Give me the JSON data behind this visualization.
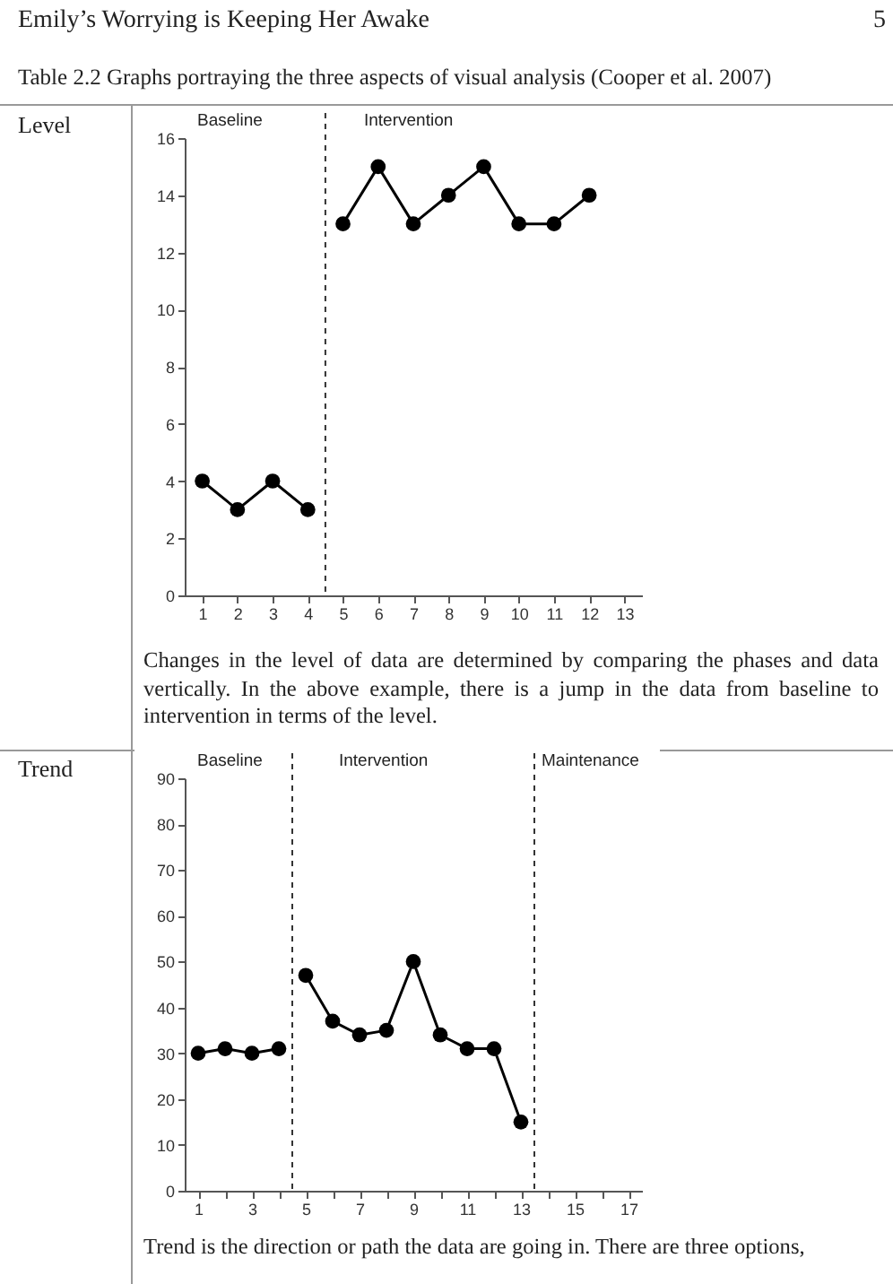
{
  "chart_data": [
    {
      "type": "line",
      "title": "Table 2.2 Graphs portraying the three aspects of visual analysis (Cooper et al. 2007)",
      "annotations": [
        "Emily’s Worrying is Keeping Her Awake",
        "5",
        "Level",
        "Baseline",
        "Intervention",
        "Changes in the level of data are determined by comparing the phases and data vertically. In the above example, there is a jump in the data from baseline to intervention in terms of the level."
      ],
      "series": [
        {
          "color": "#000000",
          "x": [
            1,
            2,
            3,
            4
          ],
          "values": [
            4,
            3,
            4,
            3
          ]
        },
        {
          "color": "#000000",
          "x": [
            5,
            6,
            7,
            8,
            9,
            10,
            11,
            12
          ],
          "values": [
            13,
            15,
            13,
            14,
            15,
            13,
            13,
            14
          ]
        }
      ],
      "xlim": [
        0.5,
        13.5
      ],
      "xticks": [
        1,
        2,
        3,
        4,
        5,
        6,
        7,
        8,
        9,
        10,
        11,
        12,
        13
      ],
      "ylim": [
        0,
        16
      ],
      "yticks": [
        0,
        2,
        4,
        6,
        8,
        10,
        12,
        14,
        16
      ],
      "ref_lines": [
        {
          "axis": "x",
          "value": 4.5,
          "label": null,
          "line_style": "dashed"
        }
      ],
      "marker": "circle",
      "line_style": "solid",
      "grid": false,
      "legend": false
    },
    {
      "type": "line",
      "annotations": [
        "Trend",
        "Baseline",
        "Intervention",
        "Maintenance",
        "Trend is the direction or path the data are going in. There are three options,"
      ],
      "series": [
        {
          "color": "#000000",
          "x": [
            1,
            2,
            3,
            4
          ],
          "values": [
            30,
            31,
            30,
            31
          ]
        },
        {
          "color": "#000000",
          "x": [
            5,
            6,
            7,
            8,
            9,
            10,
            11,
            12,
            13
          ],
          "values": [
            47,
            37,
            34,
            35,
            50,
            34,
            31,
            31,
            15
          ]
        }
      ],
      "xlim": [
        0.5,
        17.5
      ],
      "xticks": [
        1,
        {
          "value": 2,
          "label": null
        },
        3,
        {
          "value": 4,
          "label": null
        },
        5,
        {
          "value": 6,
          "label": null
        },
        7,
        {
          "value": 8,
          "label": null
        },
        9,
        {
          "value": 10,
          "label": null
        },
        11,
        {
          "value": 12,
          "label": null
        },
        13,
        {
          "value": 14,
          "label": null
        },
        15,
        {
          "value": 16,
          "label": null
        },
        17
      ],
      "ylim": [
        0,
        90
      ],
      "yticks": [
        0,
        10,
        20,
        30,
        40,
        50,
        60,
        70,
        80,
        90
      ],
      "ref_lines": [
        {
          "axis": "x",
          "value": 4.5,
          "label": null,
          "line_style": "dashed"
        },
        {
          "axis": "x",
          "value": 13.5,
          "label": null,
          "line_style": "dashed"
        }
      ],
      "marker": "circle",
      "line_style": "solid",
      "grid": false,
      "legend": false
    }
  ]
}
